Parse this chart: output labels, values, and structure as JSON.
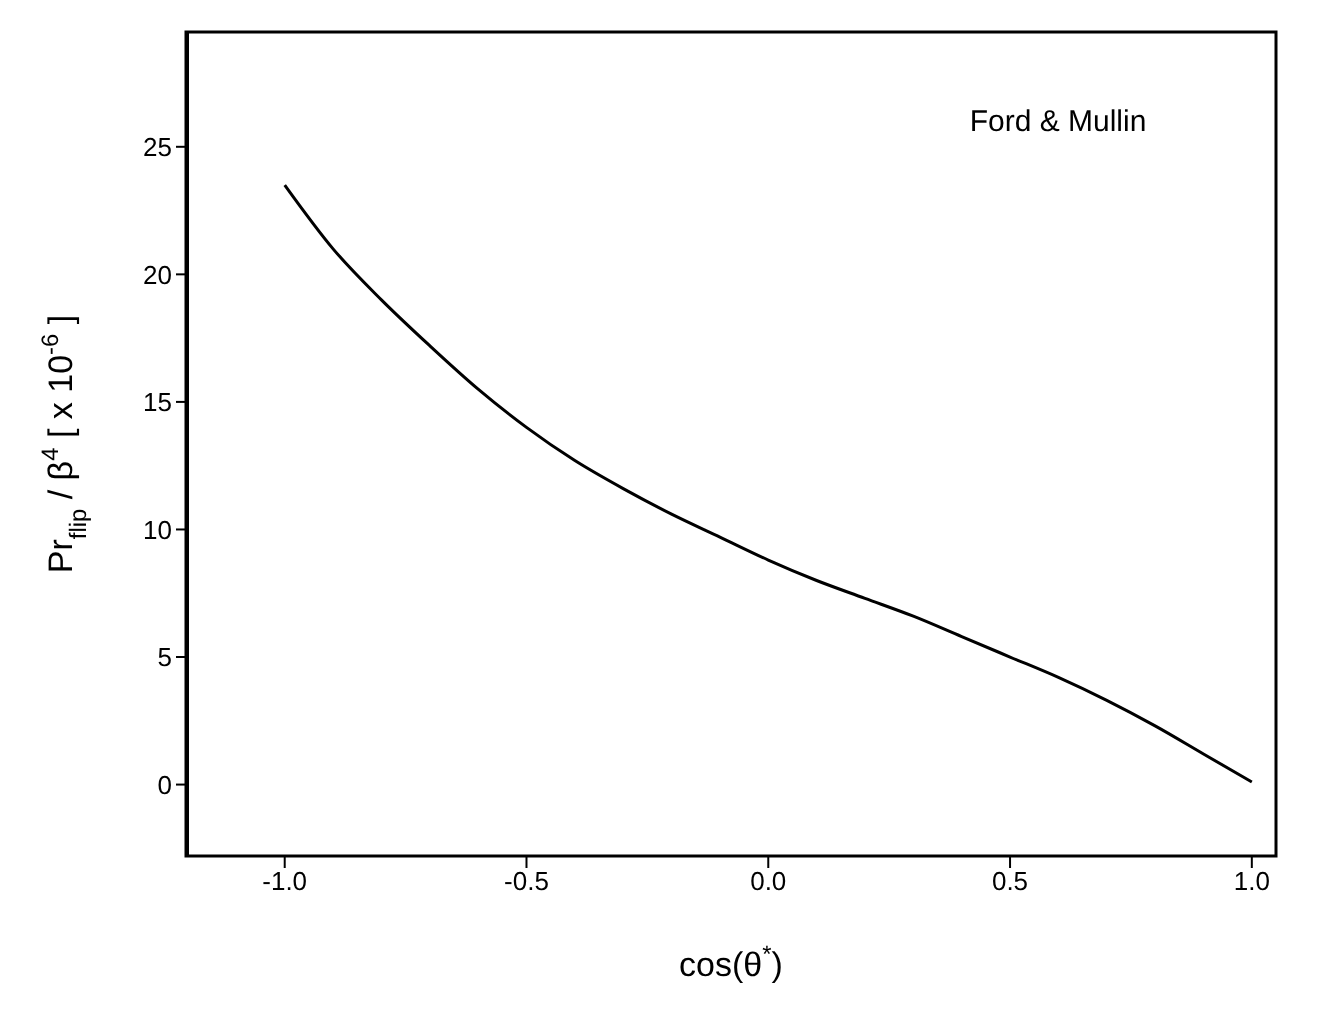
{
  "chart_data": {
    "type": "line",
    "xlabel": "cos(θ$^{*}$)",
    "ylabel": "Pr$_{flip}$ / β$^{4}$ [ x 10$^{-6}$ ]",
    "annotations": [
      "Ford & Mullin"
    ],
    "x": [
      -1.0,
      -0.9,
      -0.8,
      -0.7,
      -0.6,
      -0.5,
      -0.4,
      -0.3,
      -0.2,
      -0.1,
      0.0,
      0.1,
      0.2,
      0.3,
      0.4,
      0.5,
      0.6,
      0.7,
      0.8,
      0.9,
      1.0
    ],
    "series": [
      {
        "color": "#000000",
        "values": [
          23.5,
          21.0,
          19.0,
          17.2,
          15.5,
          14.0,
          12.7,
          11.6,
          10.6,
          9.7,
          8.8,
          8.0,
          7.3,
          6.6,
          5.8,
          5.0,
          4.2,
          3.3,
          2.3,
          1.2,
          0.1
        ]
      }
    ],
    "xlim": [
      -1.2,
      1.05
    ],
    "xticks": [
      {
        "value": -1,
        "label": "-1.0"
      },
      {
        "value": -0.5,
        "label": "-0.5"
      },
      {
        "value": 0,
        "label": "0.0"
      },
      {
        "value": 0.5,
        "label": "0.5"
      },
      {
        "value": 1,
        "label": "1.0"
      }
    ],
    "ylim": [
      -2.8,
      29.5
    ],
    "yticks": [
      0,
      5,
      10,
      15,
      20,
      25
    ],
    "grid": false,
    "marker": "none",
    "line_style": "solid"
  }
}
